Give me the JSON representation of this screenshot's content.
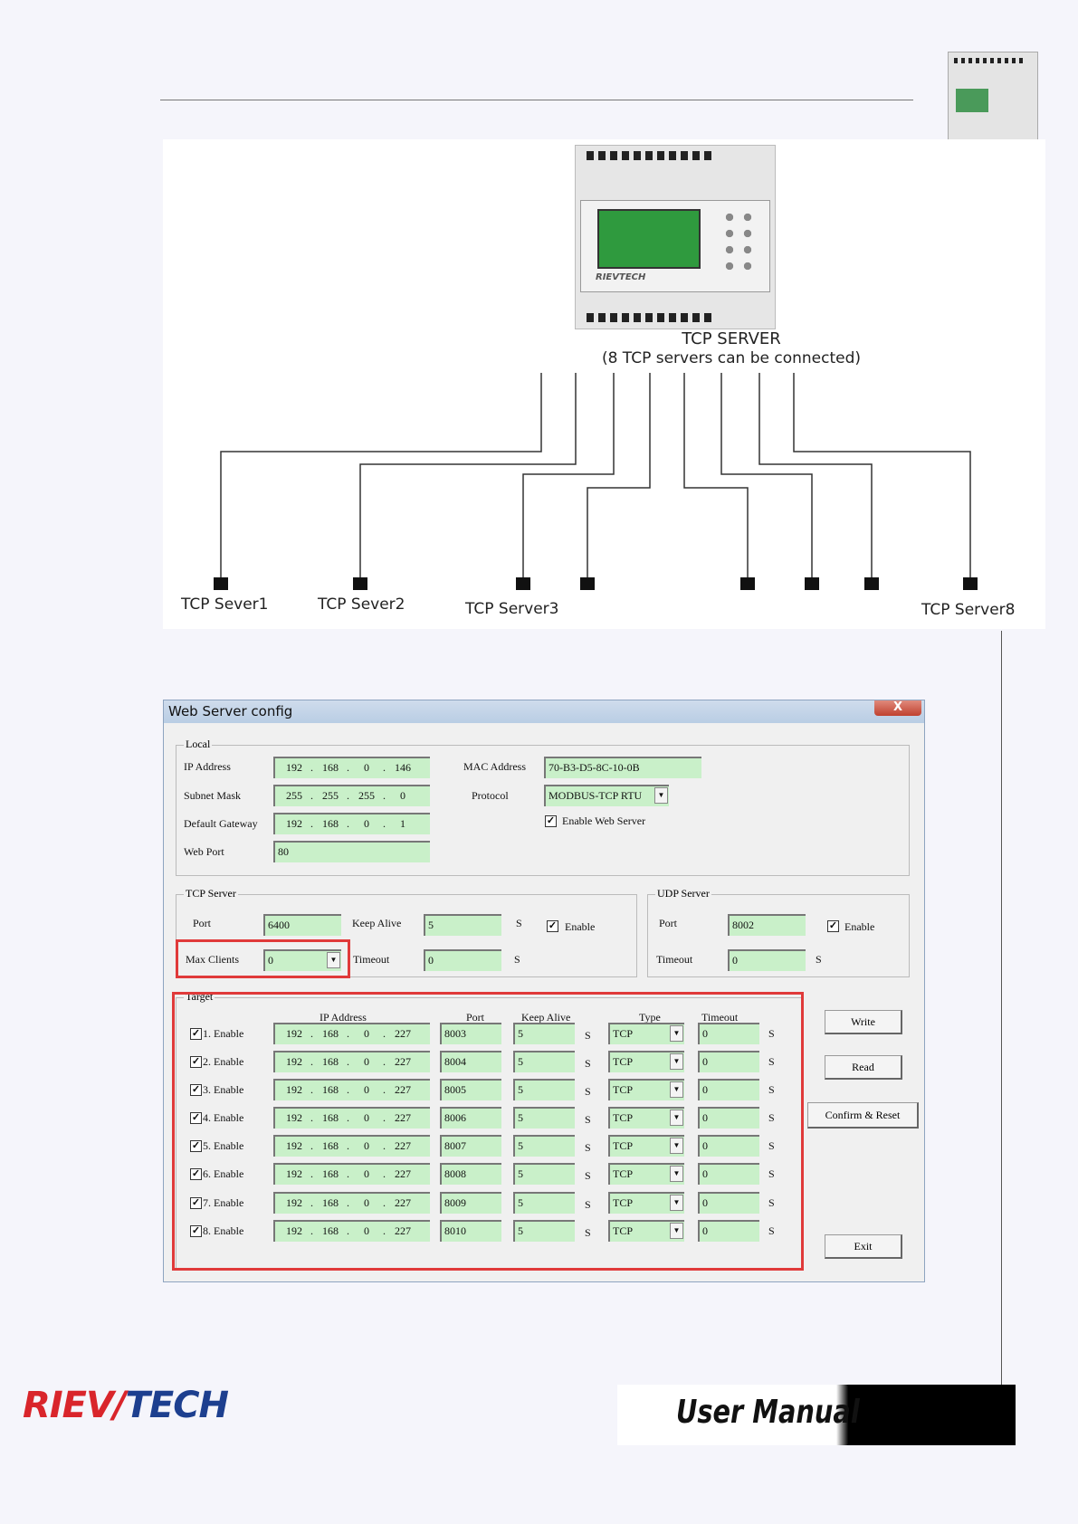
{
  "diagram": {
    "server_title": "TCP SERVER",
    "server_subtitle": "(8 TCP servers can be connected)",
    "device_brand": "RIEVTECH",
    "client_labels": [
      "TCP Sever1",
      "TCP Sever2",
      "TCP Server3",
      "TCP Server8"
    ]
  },
  "dialog": {
    "title": "Web Server config",
    "close": "X",
    "local": {
      "label": "Local",
      "ip_label": "IP Address",
      "ip": [
        "192",
        "168",
        "0",
        "146"
      ],
      "mask_label": "Subnet Mask",
      "mask": [
        "255",
        "255",
        "255",
        "0"
      ],
      "gw_label": "Default Gateway",
      "gw": [
        "192",
        "168",
        "0",
        "1"
      ],
      "webport_label": "Web Port",
      "webport": "80",
      "mac_label": "MAC Address",
      "mac": "70-B3-D5-8C-10-0B",
      "protocol_label": "Protocol",
      "protocol": "MODBUS-TCP RTU",
      "enable_web_label": "Enable Web Server",
      "enable_web": true
    },
    "tcp": {
      "label": "TCP Server",
      "port_label": "Port",
      "port": "6400",
      "keepalive_label": "Keep Alive",
      "keepalive": "5",
      "unit": "S",
      "enable_label": "Enable",
      "enable": true,
      "maxclients_label": "Max Clients",
      "maxclients": "0",
      "timeout_label": "Timeout",
      "timeout": "0"
    },
    "udp": {
      "label": "UDP Server",
      "port_label": "Port",
      "port": "8002",
      "enable_label": "Enable",
      "enable": true,
      "timeout_label": "Timeout",
      "timeout": "0",
      "unit": "S"
    },
    "target": {
      "label": "Target",
      "headers": {
        "ip": "IP Address",
        "port": "Port",
        "keepalive": "Keep Alive",
        "type": "Type",
        "timeout": "Timeout"
      },
      "rows": [
        {
          "label": "1. Enable",
          "enabled": true,
          "ip": [
            "192",
            "168",
            "0",
            "227"
          ],
          "port": "8003",
          "keepalive": "5",
          "type": "TCP",
          "timeout": "0"
        },
        {
          "label": "2. Enable",
          "enabled": true,
          "ip": [
            "192",
            "168",
            "0",
            "227"
          ],
          "port": "8004",
          "keepalive": "5",
          "type": "TCP",
          "timeout": "0"
        },
        {
          "label": "3. Enable",
          "enabled": true,
          "ip": [
            "192",
            "168",
            "0",
            "227"
          ],
          "port": "8005",
          "keepalive": "5",
          "type": "TCP",
          "timeout": "0"
        },
        {
          "label": "4. Enable",
          "enabled": true,
          "ip": [
            "192",
            "168",
            "0",
            "227"
          ],
          "port": "8006",
          "keepalive": "5",
          "type": "TCP",
          "timeout": "0"
        },
        {
          "label": "5. Enable",
          "enabled": true,
          "ip": [
            "192",
            "168",
            "0",
            "227"
          ],
          "port": "8007",
          "keepalive": "5",
          "type": "TCP",
          "timeout": "0"
        },
        {
          "label": "6. Enable",
          "enabled": true,
          "ip": [
            "192",
            "168",
            "0",
            "227"
          ],
          "port": "8008",
          "keepalive": "5",
          "type": "TCP",
          "timeout": "0"
        },
        {
          "label": "7. Enable",
          "enabled": true,
          "ip": [
            "192",
            "168",
            "0",
            "227"
          ],
          "port": "8009",
          "keepalive": "5",
          "type": "TCP",
          "timeout": "0"
        },
        {
          "label": "8. Enable",
          "enabled": true,
          "ip": [
            "192",
            "168",
            "0",
            "227"
          ],
          "port": "8010",
          "keepalive": "5",
          "type": "TCP",
          "timeout": "0"
        }
      ],
      "unit": "S"
    },
    "buttons": {
      "write": "Write",
      "read": "Read",
      "confirm": "Confirm & Reset",
      "exit": "Exit"
    }
  },
  "footer": {
    "logo": "RIEVTECH",
    "banner": "User Manual"
  },
  "colors": {
    "field": "#c9f0c9",
    "highlight": "#e03a3a",
    "logo_red": "#d9252b",
    "logo_blue": "#1d3f8f"
  }
}
